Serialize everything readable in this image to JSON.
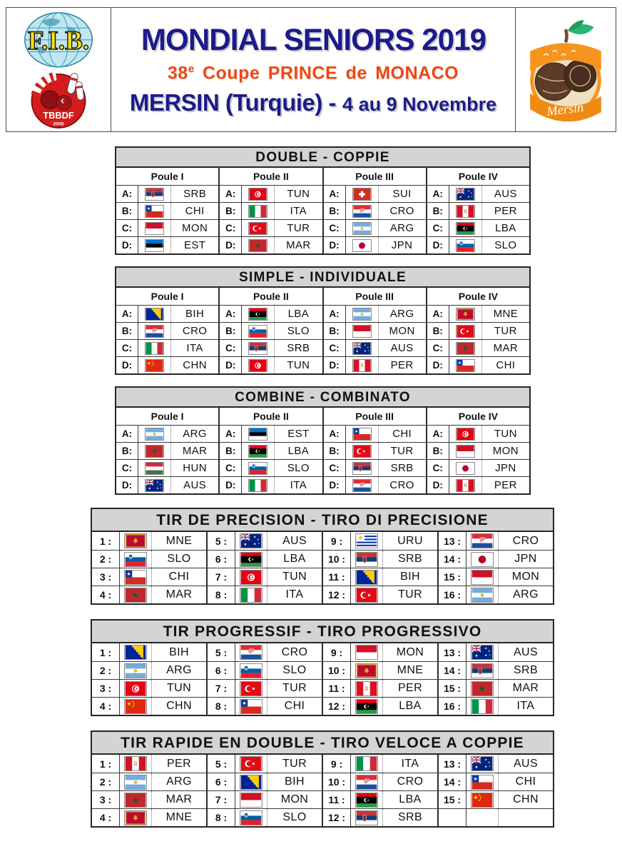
{
  "header": {
    "title": "MONDIAL SENIORS 2019",
    "subtitle_num": "38",
    "subtitle_sup": "e",
    "subtitle_rest": "Coupe PRINCE de MONACO",
    "location_main": "MERSIN (Turquie) -",
    "location_dates": "4 au 9 Novembre"
  },
  "logos": {
    "fib_text": "F.I.B.",
    "tbbdf_text": "TBBDF",
    "tbbdf_year": "2005",
    "mersin_text": "Mersin"
  },
  "colors": {
    "navy": "#1b1b8c",
    "orange": "#f04712",
    "table_header_bg": "#d4d4d4"
  },
  "pool_tables": [
    {
      "title": "DOUBLE - COPPIE",
      "poules": [
        {
          "name": "Poule I",
          "entries": [
            {
              "letter": "A:",
              "flag": "srb",
              "code": "SRB"
            },
            {
              "letter": "B:",
              "flag": "chi",
              "code": "CHI"
            },
            {
              "letter": "C:",
              "flag": "mon",
              "code": "MON"
            },
            {
              "letter": "D:",
              "flag": "est",
              "code": "EST"
            }
          ]
        },
        {
          "name": "Poule II",
          "entries": [
            {
              "letter": "A:",
              "flag": "tun",
              "code": "TUN"
            },
            {
              "letter": "B:",
              "flag": "ita",
              "code": "ITA"
            },
            {
              "letter": "C:",
              "flag": "tur",
              "code": "TUR"
            },
            {
              "letter": "D:",
              "flag": "mar",
              "code": "MAR"
            }
          ]
        },
        {
          "name": "Poule III",
          "entries": [
            {
              "letter": "A:",
              "flag": "sui",
              "code": "SUI"
            },
            {
              "letter": "B:",
              "flag": "cro",
              "code": "CRO"
            },
            {
              "letter": "C:",
              "flag": "arg",
              "code": "ARG"
            },
            {
              "letter": "D:",
              "flag": "jpn",
              "code": "JPN"
            }
          ]
        },
        {
          "name": "Poule IV",
          "entries": [
            {
              "letter": "A:",
              "flag": "aus",
              "code": "AUS"
            },
            {
              "letter": "B:",
              "flag": "per",
              "code": "PER"
            },
            {
              "letter": "C:",
              "flag": "lba",
              "code": "LBA"
            },
            {
              "letter": "D:",
              "flag": "slo",
              "code": "SLO"
            }
          ]
        }
      ]
    },
    {
      "title": "SIMPLE - INDIVIDUALE",
      "poules": [
        {
          "name": "Poule I",
          "entries": [
            {
              "letter": "A:",
              "flag": "bih",
              "code": "BIH"
            },
            {
              "letter": "B:",
              "flag": "cro",
              "code": "CRO"
            },
            {
              "letter": "C:",
              "flag": "ita",
              "code": "ITA"
            },
            {
              "letter": "D:",
              "flag": "chn",
              "code": "CHN"
            }
          ]
        },
        {
          "name": "Poule II",
          "entries": [
            {
              "letter": "A:",
              "flag": "lba",
              "code": "LBA"
            },
            {
              "letter": "B:",
              "flag": "slo",
              "code": "SLO"
            },
            {
              "letter": "C:",
              "flag": "srb",
              "code": "SRB"
            },
            {
              "letter": "D:",
              "flag": "tun",
              "code": "TUN"
            }
          ]
        },
        {
          "name": "Poule III",
          "entries": [
            {
              "letter": "A:",
              "flag": "arg",
              "code": "ARG"
            },
            {
              "letter": "B:",
              "flag": "mon",
              "code": "MON"
            },
            {
              "letter": "C:",
              "flag": "aus",
              "code": "AUS"
            },
            {
              "letter": "D:",
              "flag": "per",
              "code": "PER"
            }
          ]
        },
        {
          "name": "Poule IV",
          "entries": [
            {
              "letter": "A:",
              "flag": "mne",
              "code": "MNE"
            },
            {
              "letter": "B:",
              "flag": "tur",
              "code": "TUR"
            },
            {
              "letter": "C:",
              "flag": "mar",
              "code": "MAR"
            },
            {
              "letter": "D:",
              "flag": "chi",
              "code": "CHI"
            }
          ]
        }
      ]
    },
    {
      "title": "COMBINE - COMBINATO",
      "poules": [
        {
          "name": "Poule I",
          "entries": [
            {
              "letter": "A:",
              "flag": "arg",
              "code": "ARG"
            },
            {
              "letter": "B:",
              "flag": "mar",
              "code": "MAR"
            },
            {
              "letter": "C:",
              "flag": "hun",
              "code": "HUN"
            },
            {
              "letter": "D:",
              "flag": "aus",
              "code": "AUS"
            }
          ]
        },
        {
          "name": "Poule II",
          "entries": [
            {
              "letter": "A:",
              "flag": "est",
              "code": "EST"
            },
            {
              "letter": "B:",
              "flag": "lba",
              "code": "LBA"
            },
            {
              "letter": "C:",
              "flag": "slo",
              "code": "SLO"
            },
            {
              "letter": "D:",
              "flag": "ita",
              "code": "ITA"
            }
          ]
        },
        {
          "name": "Poule III",
          "entries": [
            {
              "letter": "A:",
              "flag": "chi",
              "code": "CHI"
            },
            {
              "letter": "B:",
              "flag": "tur",
              "code": "TUR"
            },
            {
              "letter": "C:",
              "flag": "srb",
              "code": "SRB"
            },
            {
              "letter": "D:",
              "flag": "cro",
              "code": "CRO"
            }
          ]
        },
        {
          "name": "Poule IV",
          "entries": [
            {
              "letter": "A:",
              "flag": "tun",
              "code": "TUN"
            },
            {
              "letter": "B:",
              "flag": "mon",
              "code": "MON"
            },
            {
              "letter": "C:",
              "flag": "jpn",
              "code": "JPN"
            },
            {
              "letter": "D:",
              "flag": "per",
              "code": "PER"
            }
          ]
        }
      ]
    }
  ],
  "numbered_tables": [
    {
      "title": "TIR DE PRECISION - TIRO DI PRECISIONE",
      "columns": [
        [
          {
            "num": "1 :",
            "flag": "mne",
            "code": "MNE"
          },
          {
            "num": "2 :",
            "flag": "slo",
            "code": "SLO"
          },
          {
            "num": "3 :",
            "flag": "chi",
            "code": "CHI"
          },
          {
            "num": "4 :",
            "flag": "mar",
            "code": "MAR"
          }
        ],
        [
          {
            "num": "5 :",
            "flag": "aus",
            "code": "AUS"
          },
          {
            "num": "6 :",
            "flag": "lba",
            "code": "LBA"
          },
          {
            "num": "7 :",
            "flag": "tun",
            "code": "TUN"
          },
          {
            "num": "8 :",
            "flag": "ita",
            "code": "ITA"
          }
        ],
        [
          {
            "num": "9 :",
            "flag": "uru",
            "code": "URU"
          },
          {
            "num": "10 :",
            "flag": "srb",
            "code": "SRB"
          },
          {
            "num": "11 :",
            "flag": "bih",
            "code": "BIH"
          },
          {
            "num": "12 :",
            "flag": "tur",
            "code": "TUR"
          }
        ],
        [
          {
            "num": "13 :",
            "flag": "cro",
            "code": "CRO"
          },
          {
            "num": "14 :",
            "flag": "jpn",
            "code": "JPN"
          },
          {
            "num": "15 :",
            "flag": "mon",
            "code": "MON"
          },
          {
            "num": "16 :",
            "flag": "arg",
            "code": "ARG"
          }
        ]
      ]
    },
    {
      "title": "TIR PROGRESSIF - TIRO PROGRESSIVO",
      "columns": [
        [
          {
            "num": "1 :",
            "flag": "bih",
            "code": "BIH"
          },
          {
            "num": "2 :",
            "flag": "arg",
            "code": "ARG"
          },
          {
            "num": "3 :",
            "flag": "tun",
            "code": "TUN"
          },
          {
            "num": "4 :",
            "flag": "chn",
            "code": "CHN"
          }
        ],
        [
          {
            "num": "5 :",
            "flag": "cro",
            "code": "CRO"
          },
          {
            "num": "6 :",
            "flag": "slo",
            "code": "SLO"
          },
          {
            "num": "7 :",
            "flag": "tur",
            "code": "TUR"
          },
          {
            "num": "8 :",
            "flag": "chi",
            "code": "CHI"
          }
        ],
        [
          {
            "num": "9 :",
            "flag": "mon",
            "code": "MON"
          },
          {
            "num": "10 :",
            "flag": "mne",
            "code": "MNE"
          },
          {
            "num": "11 :",
            "flag": "per",
            "code": "PER"
          },
          {
            "num": "12 :",
            "flag": "lba",
            "code": "LBA"
          }
        ],
        [
          {
            "num": "13 :",
            "flag": "aus",
            "code": "AUS"
          },
          {
            "num": "14 :",
            "flag": "srb",
            "code": "SRB"
          },
          {
            "num": "15 :",
            "flag": "mar",
            "code": "MAR"
          },
          {
            "num": "16 :",
            "flag": "ita",
            "code": "ITA"
          }
        ]
      ]
    },
    {
      "title": "TIR RAPIDE EN DOUBLE - TIRO VELOCE A COPPIE",
      "columns": [
        [
          {
            "num": "1 :",
            "flag": "per",
            "code": "PER"
          },
          {
            "num": "2 :",
            "flag": "arg",
            "code": "ARG"
          },
          {
            "num": "3 :",
            "flag": "mar",
            "code": "MAR"
          },
          {
            "num": "4 :",
            "flag": "mne",
            "code": "MNE"
          }
        ],
        [
          {
            "num": "5 :",
            "flag": "tur",
            "code": "TUR"
          },
          {
            "num": "6 :",
            "flag": "bih",
            "code": "BIH"
          },
          {
            "num": "7 :",
            "flag": "mon",
            "code": "MON"
          },
          {
            "num": "8 :",
            "flag": "slo",
            "code": "SLO"
          }
        ],
        [
          {
            "num": "9 :",
            "flag": "ita",
            "code": "ITA"
          },
          {
            "num": "10 :",
            "flag": "cro",
            "code": "CRO"
          },
          {
            "num": "11 :",
            "flag": "lba",
            "code": "LBA"
          },
          {
            "num": "12 :",
            "flag": "srb",
            "code": "SRB"
          }
        ],
        [
          {
            "num": "13 :",
            "flag": "aus",
            "code": "AUS"
          },
          {
            "num": "14 :",
            "flag": "chi",
            "code": "CHI"
          },
          {
            "num": "15 :",
            "flag": "chn",
            "code": "CHN"
          },
          {
            "num": "",
            "flag": "",
            "code": ""
          }
        ]
      ]
    }
  ]
}
